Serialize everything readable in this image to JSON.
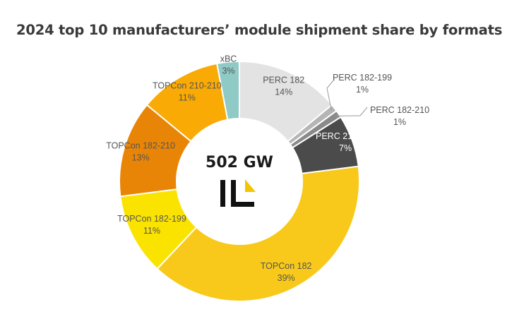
{
  "page": {
    "title": "2024 top 10 manufacturers’ module shipment share by formats"
  },
  "center": {
    "total": "502 GW",
    "logo": "IL-logo"
  },
  "colors": {
    "divider": "#ffffff",
    "logo_black": "#111111",
    "logo_yellow": "#f2c500"
  },
  "chart_data": {
    "type": "pie",
    "variant": "donut",
    "title": "2024 top 10 manufacturers’ module shipment share by formats",
    "unit": "%",
    "slices": [
      {
        "name": "PERC 182",
        "value": 14,
        "label": "14%",
        "color": "#e3e3e3"
      },
      {
        "name": "PERC 182-199",
        "value": 1,
        "label": "1%",
        "color": "#b5b5b5"
      },
      {
        "name": "PERC 182-210",
        "value": 1,
        "label": "1%",
        "color": "#8a8a8a"
      },
      {
        "name": "PERC 210-210",
        "value": 7,
        "label": "7%",
        "color": "#4b4b4b"
      },
      {
        "name": "TOPCon 182",
        "value": 39,
        "label": "39%",
        "color": "#f8c91a"
      },
      {
        "name": "TOPCon 182-199",
        "value": 11,
        "label": "11%",
        "color": "#fbe300"
      },
      {
        "name": "TOPCon 182-210",
        "value": 13,
        "label": "13%",
        "color": "#e98506"
      },
      {
        "name": "TOPCon 210-210",
        "value": 11,
        "label": "11%",
        "color": "#f9aa05"
      },
      {
        "name": "xBC",
        "value": 3,
        "label": "3%",
        "color": "#8fcac7"
      }
    ]
  }
}
